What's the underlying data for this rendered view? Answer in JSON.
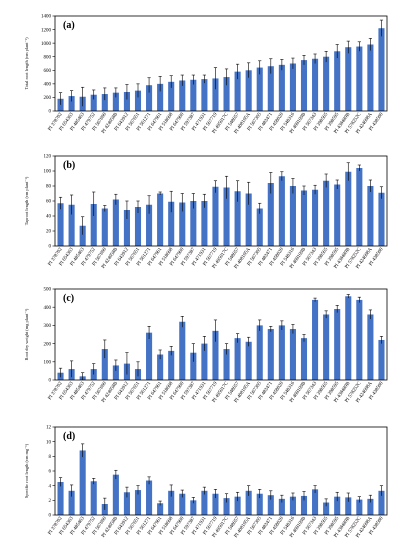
{
  "chart_data": [
    {
      "type": "bar",
      "panel_label": "(a)",
      "ylabel": "Total root length (cm plant⁻¹)",
      "ylim": [
        0,
        1400
      ],
      "yticks": [
        0,
        200,
        400,
        600,
        800,
        1000,
        1200,
        1400
      ],
      "categories": [
        "PI 378702",
        "PI 654363",
        "PI 485463",
        "PI 479752",
        "PI 567690",
        "PI 424058B",
        "PI 643912",
        "PI 567651",
        "PI 561271",
        "PI 647961",
        "PI 518668",
        "PI 647960",
        "PI 597387",
        "PI 471931",
        "PI 567719",
        "PI 495017C",
        "PI 548657",
        "PI 408105A",
        "PI 567305",
        "PI 483471",
        "PI 458020",
        "PI 548316",
        "PI 408109B",
        "PI 567343",
        "PI 398565",
        "PI 398595",
        "PI 438489B",
        "PI 578252C",
        "PI 424608A",
        "PI 438500"
      ],
      "values": [
        180,
        220,
        210,
        240,
        250,
        270,
        280,
        300,
        380,
        400,
        430,
        450,
        460,
        470,
        480,
        500,
        580,
        600,
        640,
        660,
        680,
        700,
        750,
        770,
        800,
        880,
        940,
        950,
        980,
        1220
      ],
      "errors": [
        90,
        80,
        140,
        70,
        90,
        70,
        110,
        100,
        110,
        110,
        90,
        80,
        70,
        60,
        160,
        120,
        110,
        110,
        100,
        110,
        80,
        80,
        70,
        70,
        80,
        100,
        90,
        70,
        90,
        120
      ]
    },
    {
      "type": "bar",
      "panel_label": "(b)",
      "ylabel": "Taproot length (cm plant⁻¹)",
      "ylim": [
        0,
        120
      ],
      "yticks": [
        0,
        20,
        40,
        60,
        80,
        100,
        120
      ],
      "categories": [
        "PI 378702",
        "PI 654363",
        "PI 485463",
        "PI 479752",
        "PI 567690",
        "PI 424058B",
        "PI 643912",
        "PI 567651",
        "PI 561271",
        "PI 647961",
        "PI 518668",
        "PI 647960",
        "PI 597387",
        "PI 471931",
        "PI 567719",
        "PI 495017C",
        "PI 548657",
        "PI 408105A",
        "PI 567305",
        "PI 483471",
        "PI 458020",
        "PI 548316",
        "PI 408109B",
        "PI 567343",
        "PI 398565",
        "PI 398595",
        "PI 438489B",
        "PI 578252C",
        "PI 424608A",
        "PI 438500"
      ],
      "values": [
        57,
        55,
        27,
        56,
        50,
        62,
        48,
        52,
        55,
        70,
        59,
        58,
        60,
        60,
        79,
        78,
        73,
        70,
        50,
        84,
        93,
        80,
        74,
        75,
        87,
        82,
        99,
        104,
        80,
        71
      ],
      "errors": [
        8,
        13,
        12,
        16,
        4,
        7,
        12,
        8,
        12,
        2,
        14,
        12,
        10,
        9,
        8,
        15,
        14,
        15,
        7,
        14,
        6,
        10,
        6,
        6,
        9,
        6,
        12,
        4,
        8,
        8
      ]
    },
    {
      "type": "bar",
      "panel_label": "(c)",
      "ylabel": "Root dry weight (mg plant⁻¹)",
      "ylim": [
        0,
        500
      ],
      "yticks": [
        0,
        100,
        200,
        300,
        400,
        500
      ],
      "categories": [
        "PI 378702",
        "PI 654363",
        "PI 485463",
        "PI 479752",
        "PI 567690",
        "PI 424058B",
        "PI 643912",
        "PI 567651",
        "PI 561271",
        "PI 647961",
        "PI 518668",
        "PI 647960",
        "PI 597387",
        "PI 471931",
        "PI 567719",
        "PI 495017C",
        "PI 548657",
        "PI 408105A",
        "PI 567305",
        "PI 483471",
        "PI 458020",
        "PI 548316",
        "PI 408109B",
        "PI 567343",
        "PI 398565",
        "PI 398595",
        "PI 438489B",
        "PI 578252C",
        "PI 424608A",
        "PI 438500"
      ],
      "values": [
        40,
        60,
        20,
        60,
        170,
        80,
        90,
        60,
        260,
        140,
        160,
        320,
        150,
        200,
        270,
        170,
        230,
        210,
        300,
        280,
        300,
        280,
        230,
        440,
        360,
        390,
        460,
        440,
        360,
        220
      ],
      "errors": [
        25,
        45,
        20,
        30,
        50,
        30,
        60,
        40,
        35,
        25,
        25,
        30,
        50,
        40,
        60,
        30,
        25,
        25,
        30,
        15,
        25,
        25,
        20,
        10,
        20,
        20,
        10,
        15,
        25,
        20
      ]
    },
    {
      "type": "bar",
      "panel_label": "(d)",
      "ylabel": "Specific root length (cm mg⁻¹)",
      "ylim": [
        0,
        12
      ],
      "yticks": [
        0,
        2,
        4,
        6,
        8,
        10,
        12
      ],
      "categories": [
        "PI 378702",
        "PI 654363",
        "PI 485463",
        "PI 479752",
        "PI 567690",
        "PI 424058B",
        "PI 643912",
        "PI 567651",
        "PI 561271",
        "PI 647961",
        "PI 518668",
        "PI 647960",
        "PI 597387",
        "PI 471931",
        "PI 567719",
        "PI 495017C",
        "PI 548657",
        "PI 408105A",
        "PI 567305",
        "PI 483471",
        "PI 458020",
        "PI 548316",
        "PI 408109B",
        "PI 567343",
        "PI 398565",
        "PI 398595",
        "PI 438489B",
        "PI 578252C",
        "PI 424608A",
        "PI 438500"
      ],
      "values": [
        4.5,
        3.3,
        8.8,
        4.6,
        1.5,
        5.5,
        3.1,
        3.4,
        4.7,
        1.6,
        3.3,
        2.9,
        2.0,
        3.3,
        2.9,
        2.3,
        2.5,
        3.3,
        2.9,
        2.7,
        2.2,
        2.5,
        2.6,
        3.5,
        1.7,
        2.5,
        2.4,
        2.1,
        2.2,
        3.3
      ],
      "errors": [
        0.6,
        0.8,
        0.9,
        0.4,
        0.8,
        0.6,
        0.7,
        0.6,
        0.5,
        0.3,
        0.8,
        0.5,
        0.4,
        0.5,
        0.6,
        0.6,
        0.6,
        0.7,
        0.6,
        0.6,
        0.5,
        0.5,
        0.6,
        0.5,
        0.5,
        0.6,
        0.6,
        0.4,
        0.5,
        0.7
      ]
    }
  ],
  "colors": {
    "bar": "#4472c4",
    "error_bar": "#000000",
    "axis": "#000000"
  }
}
